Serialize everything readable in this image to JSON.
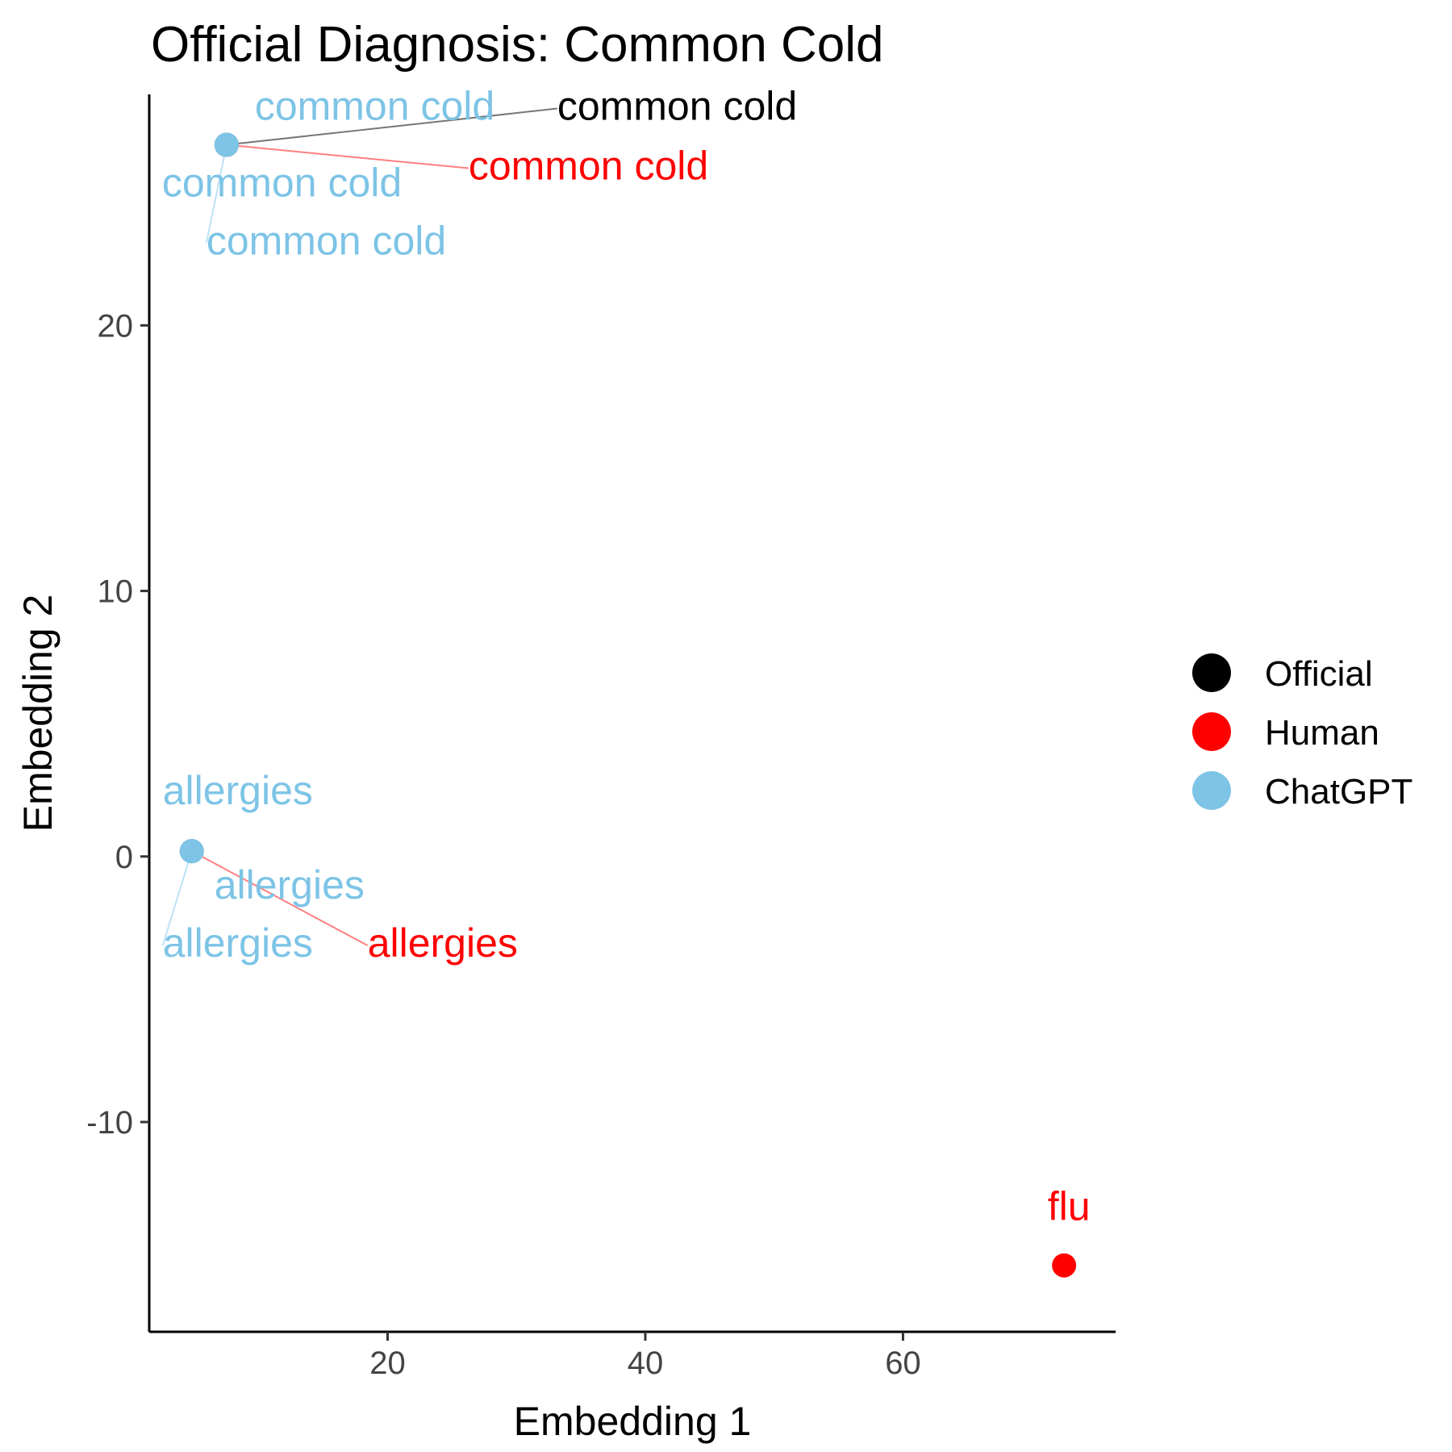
{
  "chart_data": {
    "type": "scatter",
    "title": "Official Diagnosis: Common Cold",
    "xlabel": "Embedding 1",
    "ylabel": "Embedding 2",
    "xlim": [
      1.5,
      76.5
    ],
    "ylim": [
      -17.9,
      28.7
    ],
    "xticks": [
      "20",
      "40",
      "60"
    ],
    "xtick_values": [
      20,
      40,
      60
    ],
    "yticks": [
      "-10",
      "0",
      "10",
      "20"
    ],
    "ytick_values": [
      -10,
      0,
      10,
      20
    ],
    "grid": false,
    "legend": {
      "position": "right",
      "entries": [
        {
          "name": "Official",
          "color": "#000000"
        },
        {
          "name": "Human",
          "color": "#ff0000"
        },
        {
          "name": "ChatGPT",
          "color": "#7dc4e6"
        }
      ]
    },
    "series": [
      {
        "name": "Official",
        "color": "#000000",
        "points": [
          {
            "x": 7.5,
            "y": 26.8,
            "label": "common cold"
          }
        ]
      },
      {
        "name": "Human",
        "color": "#ff0000",
        "points": [
          {
            "x": 7.5,
            "y": 26.8,
            "label": "common cold"
          },
          {
            "x": 4.8,
            "y": 0.2,
            "label": "allergies"
          },
          {
            "x": 72.5,
            "y": -15.4,
            "label": "flu"
          }
        ]
      },
      {
        "name": "ChatGPT",
        "color": "#7dc4e6",
        "points": [
          {
            "x": 7.5,
            "y": 26.8,
            "label": "common cold"
          },
          {
            "x": 7.5,
            "y": 26.8,
            "label": "common cold"
          },
          {
            "x": 7.5,
            "y": 26.8,
            "label": "common cold"
          },
          {
            "x": 4.8,
            "y": 0.2,
            "label": "allergies"
          },
          {
            "x": 4.8,
            "y": 0.2,
            "label": "allergies"
          },
          {
            "x": 4.8,
            "y": 0.2,
            "label": "allergies"
          }
        ]
      }
    ]
  }
}
